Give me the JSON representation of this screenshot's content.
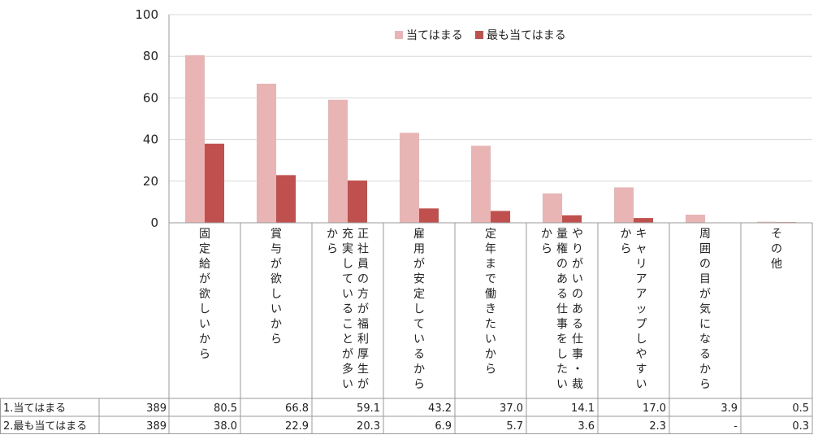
{
  "chart_data": {
    "type": "bar",
    "ylim": [
      0,
      100
    ],
    "yticks": [
      0,
      20,
      40,
      60,
      80,
      100
    ],
    "grid": true,
    "legend_position": "top-right",
    "colors": [
      "#e8b4b4",
      "#c0504d"
    ],
    "categories": [
      [
        "固",
        "定",
        "給",
        "が",
        "欲",
        "し",
        "い",
        "か",
        "ら"
      ],
      [
        "賞",
        "与",
        "が",
        "欲",
        "し",
        "い",
        "か",
        "ら"
      ],
      [
        "正社員の方が福利厚生が",
        "充実していることが多い",
        "から"
      ],
      [
        "雇",
        "用",
        "が",
        "安",
        "定",
        "し",
        "て",
        "い",
        "る",
        "か",
        "ら"
      ],
      [
        "定",
        "年",
        "ま",
        "で",
        "働",
        "き",
        "た",
        "い",
        "か",
        "ら"
      ],
      [
        "やりがいのある仕事・裁",
        "量権のある仕事をしたい",
        "から"
      ],
      [
        "キャリアアップしやすい",
        "から"
      ],
      [
        "周",
        "囲",
        "の",
        "目",
        "が",
        "気",
        "に",
        "な",
        "る",
        "か",
        "ら"
      ],
      [
        "そ",
        "の",
        "他"
      ]
    ],
    "series": [
      {
        "name": "当てはまる",
        "n": "389",
        "values": [
          80.5,
          66.8,
          59.1,
          43.2,
          37.0,
          14.1,
          17.0,
          3.9,
          0.5
        ],
        "labels": [
          "80.5",
          "66.8",
          "59.1",
          "43.2",
          "37.0",
          "14.1",
          "17.0",
          "3.9",
          "0.5"
        ]
      },
      {
        "name": "最も当てはまる",
        "n": "389",
        "values": [
          38.0,
          22.9,
          20.3,
          6.9,
          5.7,
          3.6,
          2.3,
          0,
          0.3
        ],
        "labels": [
          "38.0",
          "22.9",
          "20.3",
          "6.9",
          "5.7",
          "3.6",
          "2.3",
          "-",
          "0.3"
        ]
      }
    ],
    "table_row_labels": [
      "1.当てはまる",
      "2.最も当てはまる"
    ]
  }
}
